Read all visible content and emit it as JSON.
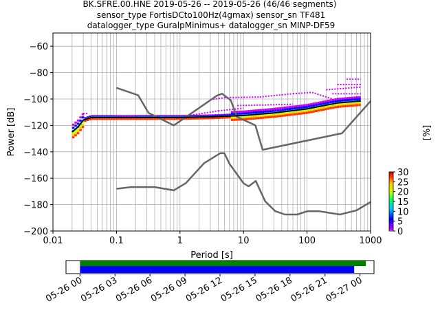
{
  "chart_data": {
    "type": "heatmap",
    "title_lines": [
      "BK.SFRE.00.HNE   2019-05-26 -- 2019-05-26  (46/46 segments)",
      "sensor_type FortisDCto100Hz(4gmax) sensor_sn TF481",
      "datalogger_type GuralpMinimus+ datalogger_sn MINP-DF59"
    ],
    "xlabel": "Period [s]",
    "ylabel": "Power [dB]",
    "xscale": "log",
    "xlim": [
      0.01,
      1000
    ],
    "ylim": [
      -200,
      -50
    ],
    "x_ticks": [
      {
        "value": 0.01,
        "label": "0.01"
      },
      {
        "value": 0.1,
        "label": "0.1"
      },
      {
        "value": 1,
        "label": "1"
      },
      {
        "value": 10,
        "label": "10"
      },
      {
        "value": 100,
        "label": "100"
      },
      {
        "value": 1000,
        "label": "1000"
      }
    ],
    "y_ticks": [
      {
        "value": -60,
        "label": "−60"
      },
      {
        "value": -80,
        "label": "−80"
      },
      {
        "value": -100,
        "label": "−100"
      },
      {
        "value": -120,
        "label": "−120"
      },
      {
        "value": -140,
        "label": "−140"
      },
      {
        "value": -160,
        "label": "−160"
      },
      {
        "value": -180,
        "label": "−180"
      },
      {
        "value": -200,
        "label": "−200"
      }
    ],
    "grid": true,
    "colorbar": {
      "label": "[%]",
      "min": 0,
      "max": 30,
      "ticks": [
        {
          "value": 0,
          "label": "0"
        },
        {
          "value": 5,
          "label": "5"
        },
        {
          "value": 10,
          "label": "10"
        },
        {
          "value": 15,
          "label": "15"
        },
        {
          "value": 20,
          "label": "20"
        },
        {
          "value": 25,
          "label": "25"
        },
        {
          "value": 30,
          "label": "30"
        }
      ],
      "colors": [
        "#ffffff",
        "#cc00ff",
        "#0000ff",
        "#00ccff",
        "#00ff66",
        "#ccff00",
        "#ffcc00",
        "#ff3300",
        "#cc0000"
      ]
    },
    "series": [
      {
        "kind": "noise-model-high",
        "color": "#666666",
        "points": [
          [
            0.1,
            -91.5
          ],
          [
            0.22,
            -97.2
          ],
          [
            0.32,
            -110.5
          ],
          [
            0.8,
            -120
          ],
          [
            3.8,
            -97.5
          ],
          [
            4.6,
            -96
          ],
          [
            6.3,
            -101
          ],
          [
            7.9,
            -113.5
          ],
          [
            15.4,
            -120
          ],
          [
            20,
            -138.5
          ],
          [
            354.8,
            -126
          ],
          [
            10000,
            -47.5
          ]
        ]
      },
      {
        "kind": "noise-model-low",
        "color": "#666666",
        "points": [
          [
            0.1,
            -168
          ],
          [
            0.17,
            -166.7
          ],
          [
            0.4,
            -166.7
          ],
          [
            0.8,
            -169.2
          ],
          [
            1.24,
            -163.7
          ],
          [
            2.4,
            -148.6
          ],
          [
            4.3,
            -141.1
          ],
          [
            5,
            -141.1
          ],
          [
            6,
            -149
          ],
          [
            10,
            -163.8
          ],
          [
            12,
            -166.2
          ],
          [
            15.6,
            -162.1
          ],
          [
            21.9,
            -177.5
          ],
          [
            31.6,
            -185
          ],
          [
            45,
            -187.5
          ],
          [
            70,
            -187.5
          ],
          [
            101,
            -185
          ],
          [
            154,
            -185
          ],
          [
            328,
            -187.5
          ],
          [
            600,
            -184.4
          ],
          [
            1000,
            -178
          ],
          [
            10000,
            -151
          ]
        ]
      },
      {
        "kind": "median",
        "color": "#000000",
        "points": [
          [
            0.02,
            -125
          ],
          [
            0.025,
            -121
          ],
          [
            0.03,
            -116
          ],
          [
            0.04,
            -114
          ],
          [
            0.1,
            -114
          ],
          [
            1,
            -114
          ],
          [
            3,
            -113.5
          ],
          [
            10,
            -112.5
          ],
          [
            30,
            -110.5
          ],
          [
            100,
            -107.5
          ],
          [
            300,
            -103
          ],
          [
            700,
            -101.5
          ]
        ]
      }
    ],
    "density_bands": [
      {
        "color": "#cc00ff",
        "offset": 3
      },
      {
        "color": "#0000ff",
        "offset": 1.5
      },
      {
        "color": "#00ccff",
        "offset": 0
      },
      {
        "color": "#ccff00",
        "offset": -1
      },
      {
        "color": "#ffcc00",
        "offset": -2
      },
      {
        "color": "#ff3300",
        "offset": -3
      }
    ],
    "outlier_segments": [
      {
        "from": [
          1.2,
          -113
        ],
        "to": [
          4,
          -109
        ],
        "color": "#cc00ff"
      },
      {
        "from": [
          4,
          -109
        ],
        "to": [
          10,
          -107
        ],
        "color": "#cc00ff"
      },
      {
        "from": [
          3,
          -100.5
        ],
        "to": [
          5,
          -99
        ],
        "color": "#cc00ff"
      },
      {
        "from": [
          5,
          -99
        ],
        "to": [
          18,
          -98.5
        ],
        "color": "#cc00ff"
      },
      {
        "from": [
          18,
          -98.5
        ],
        "to": [
          60,
          -96
        ],
        "color": "#cc00ff"
      },
      {
        "from": [
          60,
          -96
        ],
        "to": [
          120,
          -95
        ],
        "color": "#cc00ff"
      },
      {
        "from": [
          120,
          -95
        ],
        "to": [
          250,
          -100
        ],
        "color": "#cc00ff"
      },
      {
        "from": [
          250,
          -96
        ],
        "to": [
          700,
          -96
        ],
        "color": "#cc00ff"
      },
      {
        "from": [
          200,
          -93
        ],
        "to": [
          700,
          -91
        ],
        "color": "#cc00ff"
      },
      {
        "from": [
          300,
          -89
        ],
        "to": [
          700,
          -89
        ],
        "color": "#cc00ff"
      },
      {
        "from": [
          420,
          -85
        ],
        "to": [
          700,
          -85
        ],
        "color": "#cc00ff"
      },
      {
        "from": [
          8,
          -105
        ],
        "to": [
          60,
          -104
        ],
        "color": "#cc00ff"
      },
      {
        "from": [
          12,
          -109
        ],
        "to": [
          40,
          -108
        ],
        "color": "#cc00ff"
      },
      {
        "from": [
          0.1,
          -113
        ],
        "to": [
          0.2,
          -113
        ],
        "color": "#cc00ff"
      },
      {
        "from": [
          0.03,
          -111
        ],
        "to": [
          0.035,
          -111
        ],
        "color": "#cc00ff"
      }
    ],
    "timeline": {
      "ticks": [
        {
          "value": 0,
          "label": "05-26 00"
        },
        {
          "value": 3,
          "label": "05-26 03"
        },
        {
          "value": 6,
          "label": "05-26 06"
        },
        {
          "value": 9,
          "label": "05-26 09"
        },
        {
          "value": 12,
          "label": "05-26 12"
        },
        {
          "value": 15,
          "label": "05-26 15"
        },
        {
          "value": 18,
          "label": "05-26 18"
        },
        {
          "value": 21,
          "label": "05-26 21"
        },
        {
          "value": 24,
          "label": "05-27 00"
        }
      ],
      "xlim": [
        -1.2,
        25.2
      ],
      "bars": [
        {
          "color": "#008000",
          "start": 0,
          "end": 24.5
        },
        {
          "color": "#0000ff",
          "start": 0,
          "end": 23.5
        }
      ]
    }
  }
}
